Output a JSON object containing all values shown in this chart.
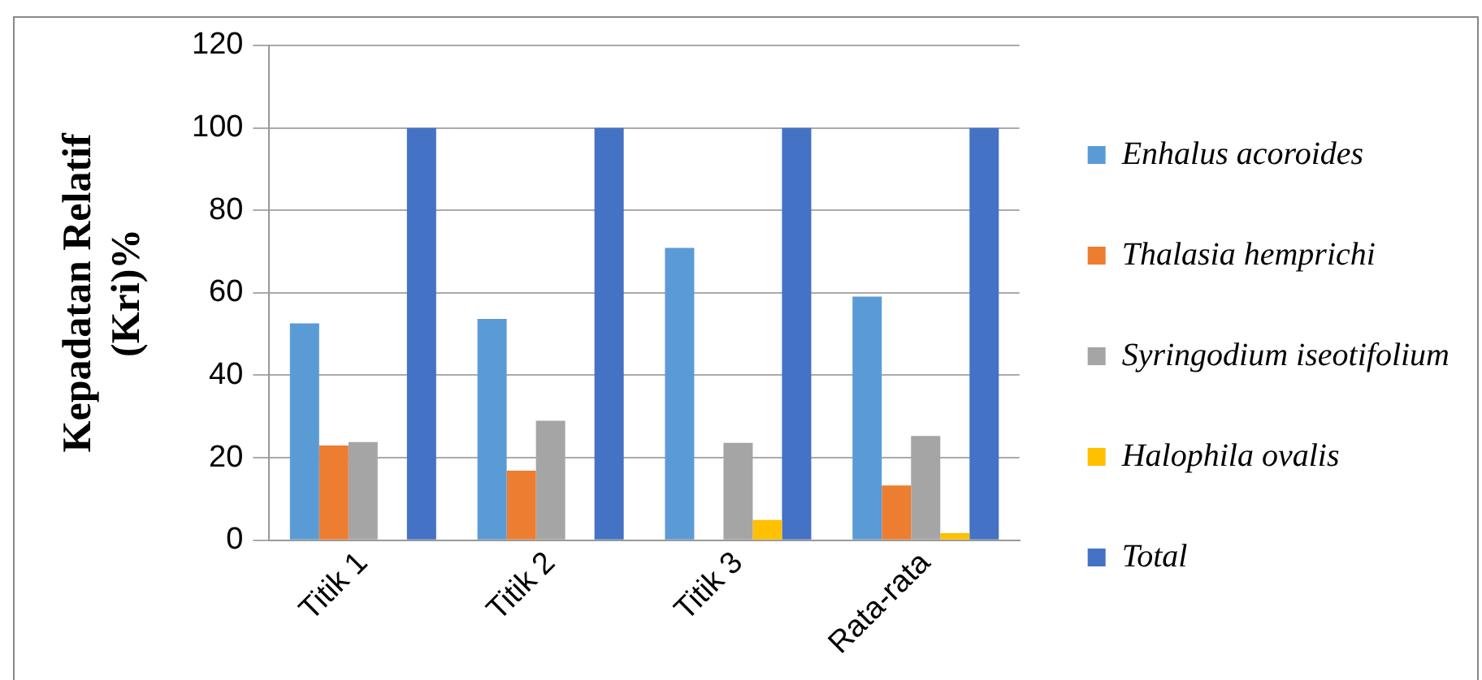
{
  "chart_data": {
    "type": "bar",
    "ylabel": "Kepadatan Relatif\n(Kri)%",
    "categories": [
      "Titik 1",
      "Titik 2",
      "Titik 3",
      "Rata-rata"
    ],
    "series": [
      {
        "name": "Enhalus acoroides",
        "color": "#5b9bd5",
        "values": [
          52.6,
          53.7,
          70.9,
          59.1
        ]
      },
      {
        "name": "Thalasia hemprichi",
        "color": "#ed7d31",
        "values": [
          23.0,
          16.9,
          0,
          13.3
        ]
      },
      {
        "name": "Syringodium iseotifolium",
        "color": "#a5a5a5",
        "values": [
          23.8,
          29.0,
          23.6,
          25.3
        ]
      },
      {
        "name": "Halophila ovalis",
        "color": "#ffc000",
        "values": [
          0,
          0,
          4.9,
          1.7
        ]
      },
      {
        "name": "Total",
        "color": "#4472c4",
        "values": [
          100,
          100,
          100,
          100
        ]
      }
    ],
    "ylim": [
      0,
      120
    ],
    "yticks": [
      0,
      20,
      40,
      60,
      80,
      100,
      120
    ],
    "grid": "y",
    "legend": "right"
  }
}
